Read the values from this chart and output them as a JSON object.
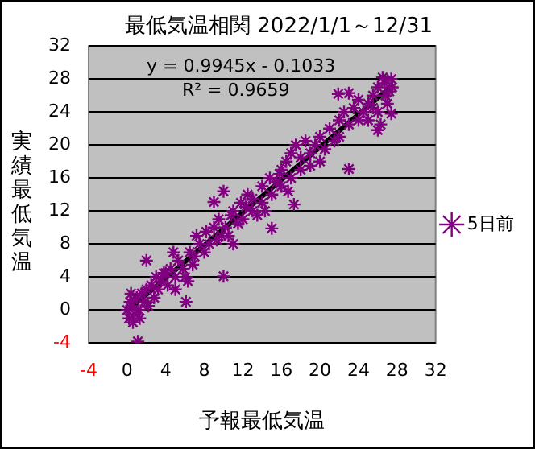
{
  "chart_data": {
    "type": "scatter",
    "title": "最低気温相関 2022/1/1～12/31",
    "xlabel": "予報最低気温",
    "ylabel": "実績最低気温",
    "xlim": [
      -4,
      32
    ],
    "xticks": [
      -4,
      0,
      4,
      8,
      12,
      16,
      20,
      24,
      28,
      32
    ],
    "ylim": [
      -4,
      32
    ],
    "yticks": [
      -4,
      0,
      4,
      8,
      12,
      16,
      20,
      24,
      28,
      32
    ],
    "grid": "y",
    "legend": "right",
    "marker": "cross",
    "annotations": [
      "y = 0.9945x - 0.1033",
      "R² = 0.9659"
    ],
    "series": [
      {
        "name": "5日前",
        "color": "#800080",
        "x": [
          0,
          0.2,
          0.5,
          0.3,
          0.8,
          1,
          1.2,
          0.6,
          1.5,
          1.3,
          1.8,
          2,
          2.2,
          1.1,
          2,
          2.5,
          2.8,
          3,
          3.2,
          0.4,
          3.5,
          4,
          4.2,
          4.5,
          5,
          5,
          5.3,
          5.8,
          6.1,
          6,
          6.5,
          6.8,
          7,
          7.2,
          7.5,
          4.8,
          3.8,
          6.3,
          8,
          8.2,
          8.5,
          9,
          9,
          9.3,
          9.5,
          10,
          10,
          10.2,
          10.5,
          10.8,
          11,
          11,
          11.5,
          11.8,
          12,
          9.8,
          12.3,
          12.5,
          13,
          13,
          13.5,
          14,
          14,
          14.3,
          14.8,
          15,
          15,
          15.5,
          15.8,
          16,
          16,
          16.5,
          16.7,
          17,
          17.3,
          17,
          17.5,
          18,
          18,
          18.5,
          19,
          19,
          19.5,
          20,
          20,
          20.5,
          21,
          21.5,
          21.9,
          22,
          22,
          22.5,
          23,
          23,
          23,
          23.5,
          24,
          24,
          24.5,
          25,
          25,
          25.5,
          25.5,
          26,
          26,
          26,
          26.3,
          26.5,
          26.8,
          27,
          27.4,
          27.4,
          27.5,
          27.2,
          26.7
        ],
        "values": [
          0,
          -1,
          0.5,
          1,
          -0.5,
          1.5,
          0,
          -1.5,
          2,
          -1,
          1,
          2.5,
          0.5,
          -3.8,
          6,
          3,
          1.5,
          4,
          2.5,
          2,
          3.5,
          4.5,
          3,
          5,
          2.5,
          4,
          6,
          5,
          1,
          4,
          7,
          5.5,
          6.5,
          9,
          8,
          7,
          4.5,
          3.5,
          7,
          9.5,
          8,
          10,
          13.1,
          8.5,
          11,
          4.1,
          14.4,
          10,
          9,
          11.5,
          12,
          8,
          10.5,
          13,
          11,
          9,
          12.5,
          14,
          12,
          13.5,
          11.5,
          15,
          13,
          12,
          16,
          9.9,
          14,
          15.5,
          16.5,
          15,
          17,
          18,
          14.4,
          16,
          12.8,
          19,
          20,
          17,
          18.5,
          20.5,
          19,
          17.5,
          20,
          18,
          21,
          19.5,
          22,
          20.5,
          26.2,
          23,
          21,
          24,
          17.1,
          26.3,
          22.5,
          24.5,
          23,
          25.5,
          24,
          25,
          23,
          26,
          24.5,
          21.8,
          27,
          24,
          22.5,
          28.2,
          26,
          25,
          28,
          23.8,
          27,
          26.5,
          27.5
        ]
      },
      {
        "type": "line",
        "color": "#000000",
        "marker": "none",
        "line_style": "solid",
        "x": [
          0.3,
          27.5
        ],
        "values": [
          0.2,
          27.2
        ]
      }
    ]
  }
}
